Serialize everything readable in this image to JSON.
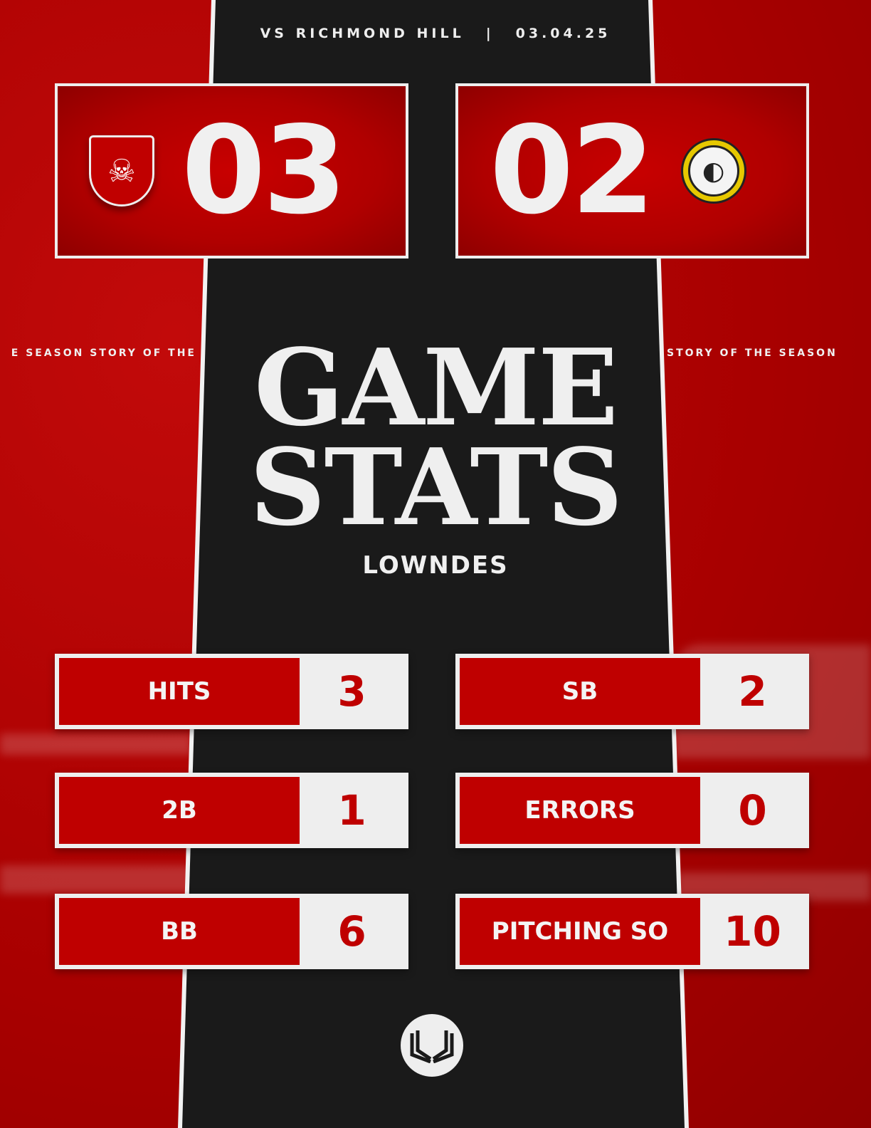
{
  "header": {
    "opponent": "VS RICHMOND HILL",
    "separator": "|",
    "date": "03.04.25"
  },
  "scores": {
    "home": {
      "score": "03",
      "logo": "viking-shield-logo"
    },
    "away": {
      "score": "02",
      "logo": "panther-logo"
    }
  },
  "side_text": {
    "left": "E SEASON  STORY OF THE",
    "right": "STORY OF THE SEASON"
  },
  "title": {
    "line1": "GAME",
    "line2": "STATS"
  },
  "team": "LOWNDES",
  "stats": [
    {
      "label": "HITS",
      "value": "3"
    },
    {
      "label": "SB",
      "value": "2"
    },
    {
      "label": "2B",
      "value": "1"
    },
    {
      "label": "ERRORS",
      "value": "0"
    },
    {
      "label": "BB",
      "value": "6"
    },
    {
      "label": "PITCHING SO",
      "value": "10"
    }
  ],
  "colors": {
    "red": "#bf0000",
    "dark": "#1a1a1a",
    "white": "#eeeeee",
    "gold": "#e6c800"
  }
}
